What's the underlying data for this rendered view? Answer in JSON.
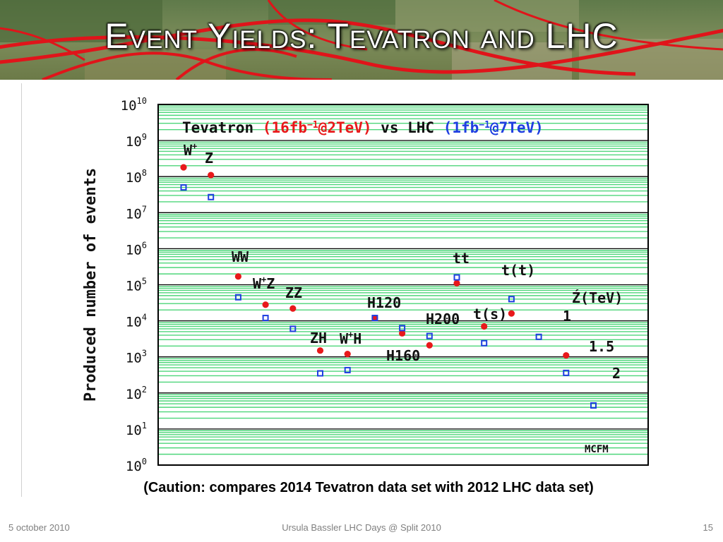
{
  "slide": {
    "title": "Event Yields: Tevatron and LHC",
    "caption": "(Caution: compares 2014 Tevatron data set with 2012 LHC data set)",
    "footer_left": "5 october 2010",
    "footer_center": "Ursula Bassler LHC Days @ Split 2010",
    "footer_right": "15"
  },
  "chart_data": {
    "type": "scatter",
    "ylabel": "Produced number of events",
    "yscale": "log",
    "ylim": [
      1,
      10000000000
    ],
    "y_ticks": [
      {
        "base": "10",
        "exp": "0"
      },
      {
        "base": "10",
        "exp": "1"
      },
      {
        "base": "10",
        "exp": "2"
      },
      {
        "base": "10",
        "exp": "3"
      },
      {
        "base": "10",
        "exp": "4"
      },
      {
        "base": "10",
        "exp": "5"
      },
      {
        "base": "10",
        "exp": "6"
      },
      {
        "base": "10",
        "exp": "7"
      },
      {
        "base": "10",
        "exp": "8"
      },
      {
        "base": "10",
        "exp": "9"
      },
      {
        "base": "10",
        "exp": "10"
      }
    ],
    "grid": true,
    "legend_title": {
      "prefix": "Tevatron ",
      "tev_open": "(16fb",
      "tev_sup": "−1",
      "tev_close": "@2TeV)",
      "middle": " vs LHC ",
      "lhc_open": "(1fb",
      "lhc_sup": "−1",
      "lhc_close": "@7TeV)"
    },
    "corner_label": "MCFM",
    "categories": [
      "W+",
      "Z",
      "WW",
      "W+Z",
      "ZZ",
      "ZH",
      "W+H",
      "H120",
      "H160",
      "H200",
      "tt",
      "t(s)",
      "t(t)",
      "Z'(TeV) 1",
      "1.5",
      "2"
    ],
    "series": [
      {
        "name": "Tevatron (16fb−1@2TeV)",
        "color": "#e8191b",
        "marker": "filled-circle",
        "values": [
          180000000,
          110000000,
          170000,
          28000,
          22000,
          1500,
          1200,
          12000,
          4500,
          2100,
          110000,
          7000,
          16000,
          null,
          1100,
          null
        ]
      },
      {
        "name": "LHC (1fb−1@7TeV)",
        "color": "#1f3fe0",
        "marker": "open-square",
        "values": [
          50000000,
          27000000,
          45000,
          12000,
          6000,
          350,
          430,
          12000,
          6300,
          3800,
          160000,
          2400,
          40000,
          3600,
          360,
          45
        ]
      }
    ],
    "point_labels": [
      {
        "text": "W",
        "sup": "+"
      },
      {
        "text": "Z",
        "sup": ""
      },
      {
        "text": "WW",
        "sup": ""
      },
      {
        "text": "W",
        "sup": "+",
        "after": "Z"
      },
      {
        "text": "ZZ",
        "sup": ""
      },
      {
        "text": "ZH",
        "sup": ""
      },
      {
        "text": "W",
        "sup": "+",
        "after": "H"
      },
      {
        "text": "H120",
        "sup": ""
      },
      {
        "text": "H160",
        "sup": ""
      },
      {
        "text": "H200",
        "sup": ""
      },
      {
        "text": "tt",
        "sup": ""
      },
      {
        "text": "t(s)",
        "sup": ""
      },
      {
        "text": "t(t)",
        "sup": ""
      },
      {
        "text": "Ź(TeV)",
        "sup": ""
      },
      {
        "text": "1",
        "sup": ""
      },
      {
        "text": "1.5",
        "sup": ""
      },
      {
        "text": "2",
        "sup": ""
      }
    ]
  }
}
